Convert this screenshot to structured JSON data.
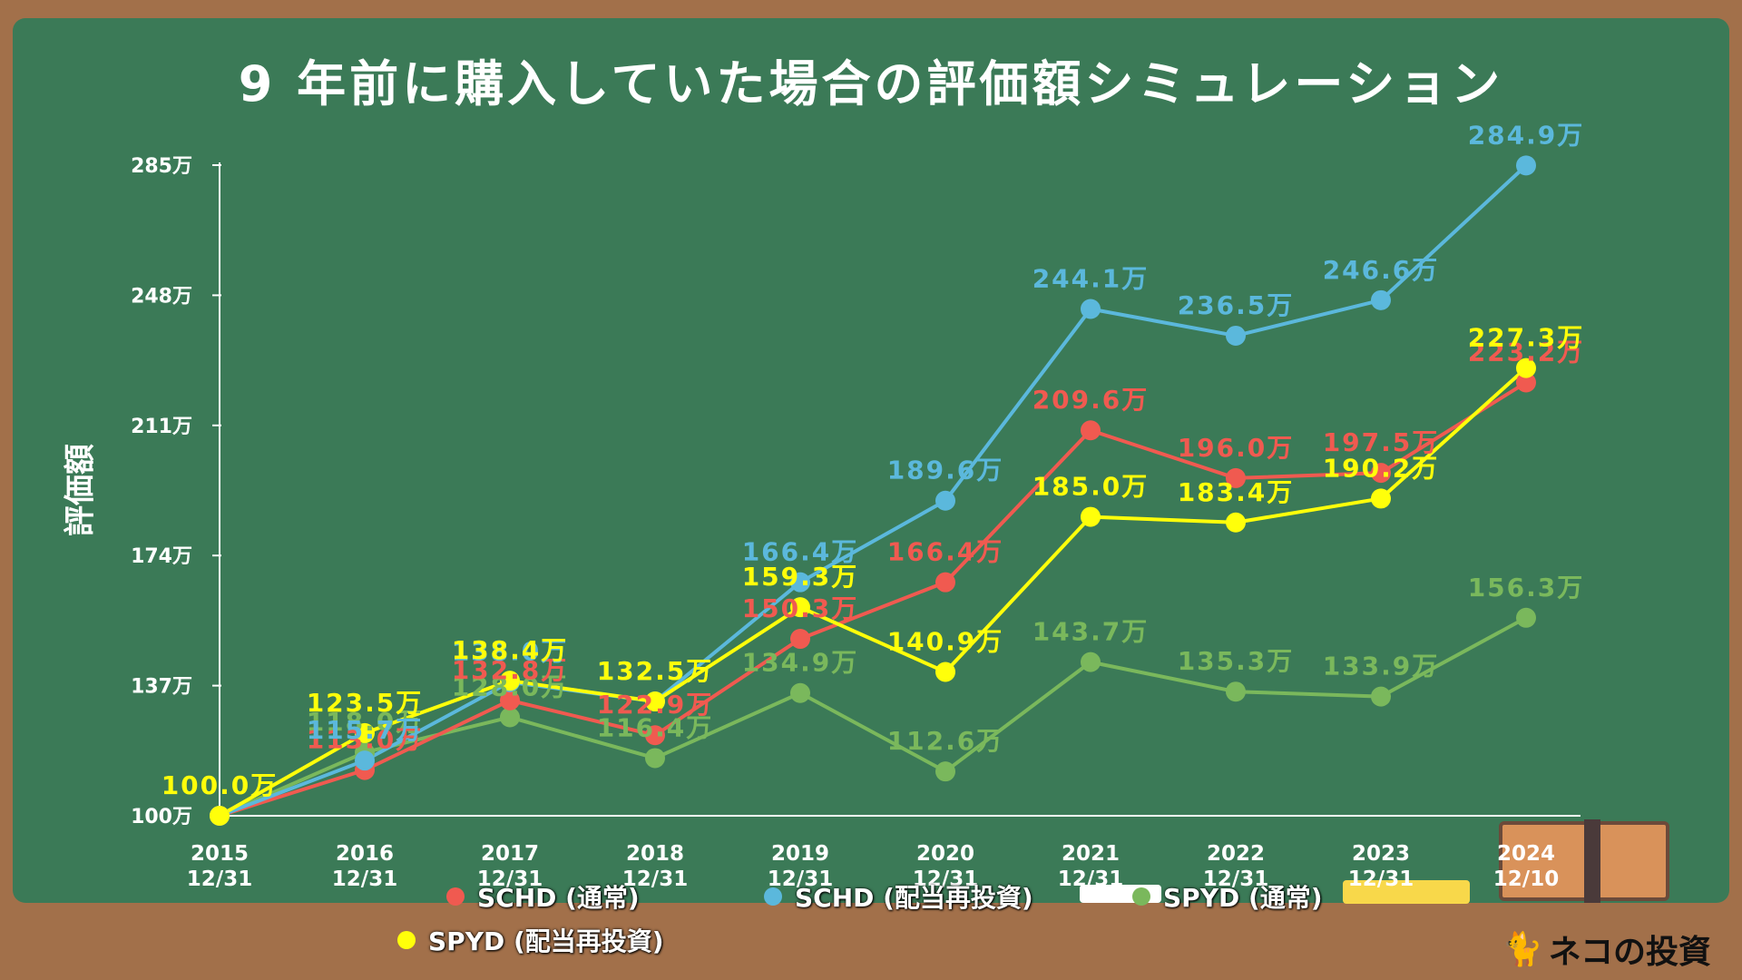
{
  "title": "9 年前に購入していた場合の評価額シミュレーション",
  "brand": "ネコの投資",
  "chart_data": {
    "type": "line",
    "title": "9 年前に購入していた場合の評価額シミュレーション",
    "xlabel": "",
    "ylabel": "評価額",
    "categories": [
      "2015\n12/31",
      "2016\n12/31",
      "2017\n12/31",
      "2018\n12/31",
      "2019\n12/31",
      "2020\n12/31",
      "2021\n12/31",
      "2022\n12/31",
      "2023\n12/31",
      "2024\n12/10"
    ],
    "y_ticks": [
      "100万",
      "137万",
      "174万",
      "211万",
      "248万",
      "285万"
    ],
    "y_tick_values": [
      100,
      137,
      174,
      211,
      248,
      285
    ],
    "ylim": [
      100,
      285
    ],
    "grid": false,
    "legend_position": "bottom",
    "unit": "万",
    "series": [
      {
        "name": "SCHD (通常)",
        "color": "#f05a50",
        "values": [
          100.0,
          113.0,
          132.8,
          122.9,
          150.3,
          166.4,
          209.6,
          196.0,
          197.5,
          223.2
        ]
      },
      {
        "name": "SCHD (配当再投資)",
        "color": "#5bb8dc",
        "values": [
          100.0,
          115.7,
          138.0,
          132.5,
          166.4,
          189.6,
          244.1,
          236.5,
          246.6,
          284.9
        ]
      },
      {
        "name": "SPYD (通常)",
        "color": "#7ab85c",
        "values": [
          100.0,
          118.0,
          128.0,
          116.4,
          134.9,
          112.6,
          143.7,
          135.3,
          133.9,
          156.3
        ]
      },
      {
        "name": "SPYD (配当再投資)",
        "color": "#ffff0a",
        "values": [
          100.0,
          123.5,
          138.4,
          132.5,
          159.3,
          140.9,
          185.0,
          183.4,
          190.2,
          227.3
        ]
      }
    ]
  }
}
